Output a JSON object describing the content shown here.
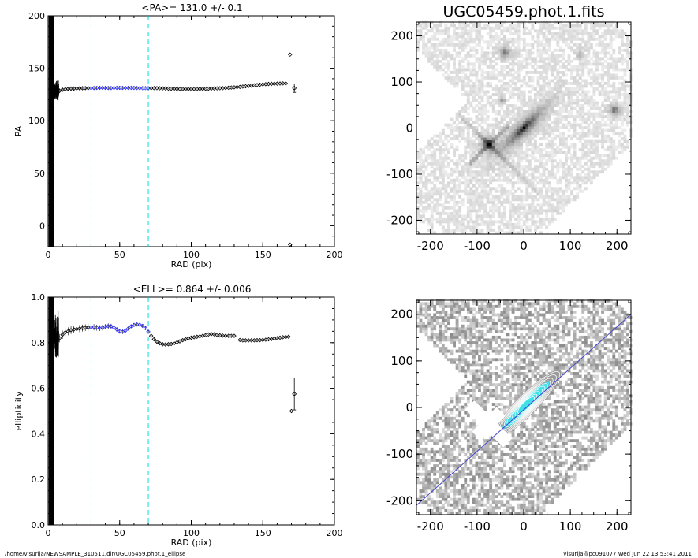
{
  "footer": {
    "path": "/home/visurija/NEWSAMPLE_310511.dir/UGC05459.phot.1_ellipse",
    "user_stamp": "visurija@pc091077  Wed Jun 22 13:53:41 2011"
  },
  "colors": {
    "fit_band": "#00dddd",
    "highlight": "#2a2aff",
    "model_line": "#4444cc",
    "contour": "#ffffff",
    "core": "#40e0e8"
  },
  "chart_data": [
    {
      "type": "scatter",
      "title": "<PA>= 131.0 +/-   0.1",
      "xlabel": "RAD (pix)",
      "ylabel": "PA",
      "xlim": [
        0,
        200
      ],
      "ylim": [
        -20,
        200
      ],
      "xticks": [
        0,
        50,
        100,
        150,
        200
      ],
      "yticks": [
        0,
        50,
        100,
        150,
        200
      ],
      "fit_range": [
        30,
        70
      ],
      "x": [
        6,
        8,
        10,
        12,
        14,
        16,
        18,
        20,
        22,
        24,
        26,
        28,
        30,
        32,
        34,
        36,
        38,
        40,
        42,
        44,
        46,
        48,
        50,
        52,
        54,
        56,
        58,
        60,
        62,
        64,
        66,
        68,
        70,
        72,
        74,
        76,
        78,
        80,
        82,
        84,
        86,
        88,
        90,
        92,
        94,
        96,
        98,
        100,
        102,
        104,
        106,
        108,
        110,
        112,
        114,
        116,
        118,
        120,
        122,
        124,
        126,
        128,
        130,
        132,
        134,
        136,
        138,
        140,
        142,
        144,
        146,
        148,
        150,
        152,
        154,
        156,
        158,
        160,
        162,
        164,
        166
      ],
      "y": [
        127,
        128.5,
        129.5,
        130,
        130.3,
        130.5,
        130.6,
        130.7,
        130.8,
        130.9,
        131,
        131,
        131,
        131.1,
        131.2,
        131.3,
        131.3,
        131.2,
        131.1,
        131.1,
        131.2,
        131.3,
        131.3,
        131.2,
        131.2,
        131.3,
        131.3,
        131.2,
        131.1,
        131,
        131,
        131,
        131,
        131,
        131,
        131,
        130.9,
        130.8,
        130.7,
        130.6,
        130.5,
        130.4,
        130.3,
        130.2,
        130.2,
        130.2,
        130.2,
        130.2,
        130.2,
        130.2,
        130.3,
        130.3,
        130.4,
        130.5,
        130.6,
        130.7,
        130.8,
        130.9,
        131,
        131.2,
        131.4,
        131.6,
        131.8,
        132,
        132.2,
        132.5,
        132.8,
        133.1,
        133.4,
        133.7,
        134,
        134.3,
        134.6,
        134.8,
        135,
        135.1,
        135.2,
        135.3,
        135.4,
        135.5,
        135.5
      ],
      "outliers": [
        {
          "x": 169,
          "y": 163
        },
        {
          "x": 169,
          "y": -18
        }
      ],
      "mean_point": {
        "x": 172,
        "y": 131,
        "err": 4
      }
    },
    {
      "type": "scatter",
      "title": "<ELL>= 0.864 +/-  0.006",
      "xlabel": "RAD (pix)",
      "ylabel": "ellipticity",
      "xlim": [
        0,
        200
      ],
      "ylim": [
        0,
        1
      ],
      "xticks": [
        0,
        50,
        100,
        150,
        200
      ],
      "yticks": [
        0.0,
        0.2,
        0.4,
        0.6,
        0.8,
        1.0
      ],
      "fit_range": [
        30,
        70
      ],
      "x": [
        6,
        8,
        10,
        12,
        14,
        16,
        18,
        20,
        22,
        24,
        26,
        28,
        30,
        32,
        34,
        36,
        38,
        40,
        42,
        44,
        46,
        48,
        50,
        52,
        54,
        56,
        58,
        60,
        62,
        64,
        66,
        68,
        70,
        72,
        74,
        76,
        78,
        80,
        82,
        84,
        86,
        88,
        90,
        92,
        94,
        96,
        98,
        100,
        102,
        104,
        106,
        108,
        110,
        112,
        114,
        116,
        118,
        120,
        122,
        124,
        126,
        128,
        130,
        134,
        136,
        138,
        140,
        142,
        144,
        146,
        148,
        150,
        152,
        154,
        156,
        158,
        160,
        162,
        164,
        166,
        168
      ],
      "y": [
        0.8,
        0.82,
        0.835,
        0.845,
        0.85,
        0.855,
        0.858,
        0.86,
        0.862,
        0.864,
        0.866,
        0.867,
        0.868,
        0.868,
        0.866,
        0.864,
        0.866,
        0.87,
        0.873,
        0.872,
        0.866,
        0.858,
        0.85,
        0.848,
        0.853,
        0.862,
        0.872,
        0.878,
        0.88,
        0.879,
        0.874,
        0.864,
        0.848,
        0.83,
        0.815,
        0.804,
        0.797,
        0.793,
        0.792,
        0.793,
        0.794,
        0.797,
        0.801,
        0.806,
        0.811,
        0.815,
        0.819,
        0.822,
        0.824,
        0.826,
        0.828,
        0.83,
        0.833,
        0.836,
        0.838,
        0.837,
        0.834,
        0.832,
        0.831,
        0.83,
        0.83,
        0.83,
        0.83,
        0.812,
        0.81,
        0.81,
        0.81,
        0.81,
        0.81,
        0.811,
        0.811,
        0.812,
        0.813,
        0.815,
        0.816,
        0.818,
        0.82,
        0.822,
        0.824,
        0.825,
        0.826
      ],
      "outliers": [
        {
          "x": 170,
          "y": 0.5
        }
      ],
      "mean_point": {
        "x": 172,
        "y": 0.575,
        "err": 0.07
      }
    }
  ],
  "image_panels": [
    {
      "title": "UGC05459.phot.1.fits",
      "xlim": [
        -230,
        230
      ],
      "ylim": [
        -230,
        230
      ],
      "xticks": [
        -200,
        -100,
        0,
        100,
        200
      ],
      "yticks": [
        -200,
        -100,
        0,
        100,
        200
      ]
    },
    {
      "title": "",
      "xlim": [
        -230,
        230
      ],
      "ylim": [
        -230,
        230
      ],
      "xticks": [
        -200,
        -100,
        0,
        100,
        200
      ],
      "yticks": [
        -200,
        -100,
        0,
        100,
        200
      ]
    }
  ]
}
